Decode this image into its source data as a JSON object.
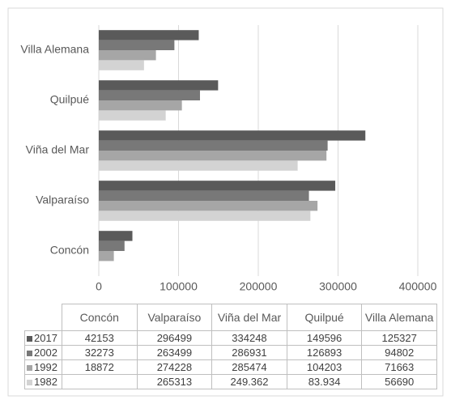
{
  "chart_data": {
    "type": "bar",
    "orientation": "horizontal",
    "categories": [
      "Concón",
      "Valparaíso",
      "Viña del Mar",
      "Quilpué",
      "Villa Alemana"
    ],
    "series": [
      {
        "name": "2017",
        "color": "#5a5a5a",
        "values": [
          42153,
          296499,
          334248,
          149596,
          125327
        ]
      },
      {
        "name": "2002",
        "color": "#787878",
        "values": [
          32273,
          263499,
          286931,
          126893,
          94802
        ]
      },
      {
        "name": "1992",
        "color": "#a6a6a6",
        "values": [
          18872,
          274228,
          285474,
          104203,
          71663
        ]
      },
      {
        "name": "1982",
        "color": "#d3d3d3",
        "values": [
          null,
          265313,
          249362,
          83934,
          56690
        ],
        "value_labels": [
          null,
          null,
          "249.362",
          "83.934",
          null
        ]
      }
    ],
    "xlim": [
      0,
      400000
    ],
    "xticks": [
      0,
      100000,
      200000,
      300000,
      400000
    ],
    "grid": true,
    "data_table": true
  }
}
